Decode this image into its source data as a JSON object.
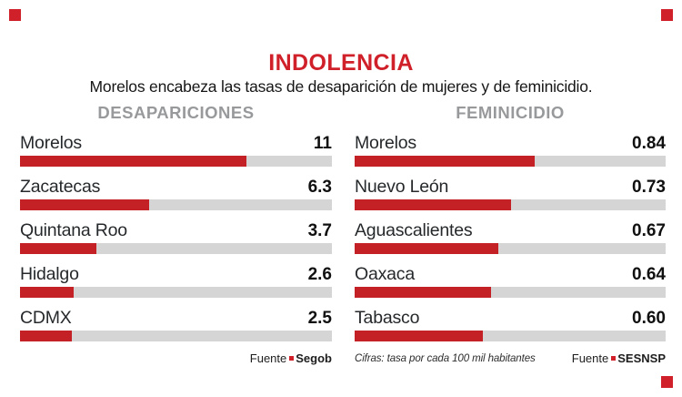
{
  "meta": {
    "brand_red": "#d0202a",
    "bar_red": "#c32126",
    "track_gray": "#d5d5d5",
    "header_gray": "#97999b"
  },
  "header": {
    "title": "INDOLENCIA",
    "subtitle": "Morelos encabeza las tasas de desaparición de mujeres y de feminicidio."
  },
  "panels": [
    {
      "id": "desapariciones",
      "header": "DESAPARICIONES",
      "scale_max": 15.17,
      "rows": [
        {
          "label": "Morelos",
          "value": "11",
          "num": 11
        },
        {
          "label": "Zacatecas",
          "value": "6.3",
          "num": 6.3
        },
        {
          "label": "Quintana Roo",
          "value": "3.7",
          "num": 3.7
        },
        {
          "label": "Hidalgo",
          "value": "2.6",
          "num": 2.6
        },
        {
          "label": "CDMX",
          "value": "2.5",
          "num": 2.5
        }
      ],
      "source_prefix": "Fuente",
      "source_name": "Segob"
    },
    {
      "id": "feminicidio",
      "header": "FEMINICIDIO",
      "scale_max": 1.4533,
      "rows": [
        {
          "label": "Morelos",
          "value": "0.84",
          "num": 0.84
        },
        {
          "label": "Nuevo León",
          "value": "0.73",
          "num": 0.73
        },
        {
          "label": "Aguascalientes",
          "value": "0.67",
          "num": 0.67
        },
        {
          "label": "Oaxaca",
          "value": "0.64",
          "num": 0.64
        },
        {
          "label": "Tabasco",
          "value": "0.60",
          "num": 0.6
        }
      ],
      "source_prefix": "Fuente",
      "source_name": "SESNSP"
    }
  ],
  "footnote": "Cifras: tasa por cada 100 mil habitantes",
  "chart_data": [
    {
      "type": "bar",
      "orientation": "horizontal",
      "title": "DESAPARICIONES",
      "categories": [
        "Morelos",
        "Zacatecas",
        "Quintana Roo",
        "Hidalgo",
        "CDMX"
      ],
      "values": [
        11,
        6.3,
        3.7,
        2.6,
        2.5
      ],
      "xlabel": "",
      "ylabel": "",
      "xlim": [
        0,
        15.2
      ],
      "unit": "tasa por cada 100 mil habitantes",
      "source": "Segob",
      "bar_color": "#c32126",
      "track_color": "#d5d5d5",
      "grid": false,
      "legend": false,
      "value_labels": "right-aligned bold"
    },
    {
      "type": "bar",
      "orientation": "horizontal",
      "title": "FEMINICIDIO",
      "categories": [
        "Morelos",
        "Nuevo León",
        "Aguascalientes",
        "Oaxaca",
        "Tabasco"
      ],
      "values": [
        0.84,
        0.73,
        0.67,
        0.64,
        0.6
      ],
      "xlabel": "",
      "ylabel": "",
      "xlim": [
        0,
        1.45
      ],
      "unit": "tasa por cada 100 mil habitantes",
      "source": "SESNSP",
      "bar_color": "#c32126",
      "track_color": "#d5d5d5",
      "grid": false,
      "legend": false,
      "value_labels": "right-aligned bold"
    }
  ]
}
